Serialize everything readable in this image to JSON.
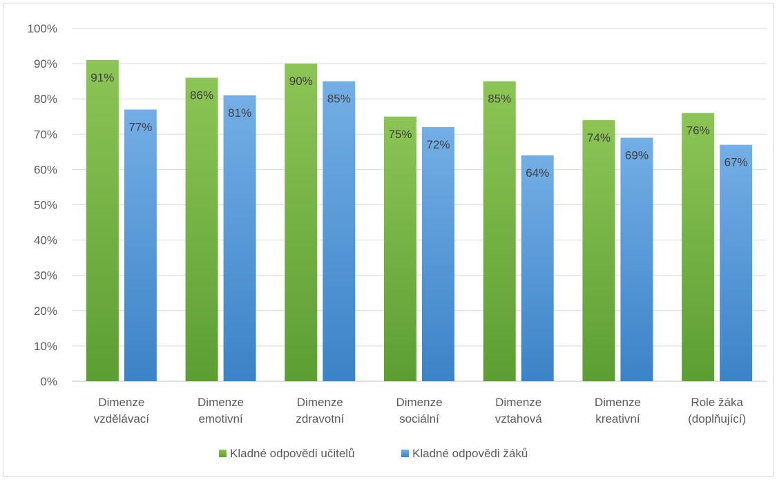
{
  "chart_data": {
    "type": "bar",
    "title": "",
    "xlabel": "",
    "ylabel": "",
    "ylim": [
      0,
      100
    ],
    "yticks": [
      "0%",
      "10%",
      "20%",
      "30%",
      "40%",
      "50%",
      "60%",
      "70%",
      "80%",
      "90%",
      "100%"
    ],
    "categories": [
      [
        "Dimenze",
        "vzdělávací"
      ],
      [
        "Dimenze",
        "emotivní"
      ],
      [
        "Dimenze",
        "zdravotní"
      ],
      [
        "Dimenze",
        "sociální"
      ],
      [
        "Dimenze",
        "vztahová"
      ],
      [
        "Dimenze",
        "kreativní"
      ],
      [
        "Role žáka",
        "(doplňující)"
      ]
    ],
    "series": [
      {
        "name": "Kladné odpovědi učitelů",
        "values": [
          91,
          86,
          90,
          75,
          85,
          74,
          76
        ],
        "labels": [
          "91%",
          "86%",
          "90%",
          "75%",
          "85%",
          "74%",
          "76%"
        ],
        "color_top": "#8cc556",
        "color_bottom": "#5c9e33"
      },
      {
        "name": "Kladné odpovědi žáků",
        "values": [
          77,
          81,
          85,
          72,
          64,
          69,
          67
        ],
        "labels": [
          "77%",
          "81%",
          "85%",
          "72%",
          "64%",
          "69%",
          "67%"
        ],
        "color_top": "#74aee6",
        "color_bottom": "#3b83c7"
      }
    ],
    "grid": true,
    "legend_position": "bottom"
  }
}
